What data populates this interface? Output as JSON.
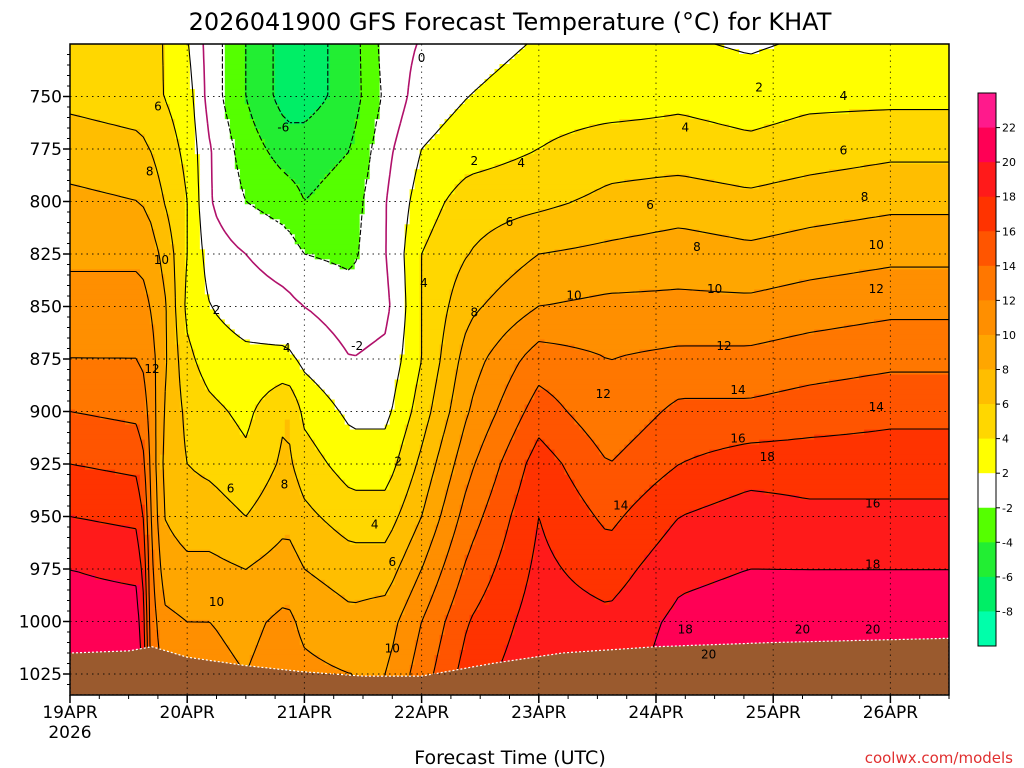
{
  "chart_data": {
    "type": "heatmap",
    "title": "2026041900 GFS Forecast Temperature (°C) for KHAT",
    "xlabel": "Forecast Time (UTC)",
    "ylabel": "",
    "x_ticks": [
      "19APR",
      "20APR",
      "21APR",
      "22APR",
      "23APR",
      "24APR",
      "25APR",
      "26APR"
    ],
    "x_year": "2026",
    "y_ticks": [
      750,
      775,
      800,
      825,
      850,
      875,
      900,
      925,
      950,
      975,
      1000,
      1025
    ],
    "y_range_hpa": [
      1035,
      725
    ],
    "x_range_days": [
      0,
      7.5
    ],
    "grid": true,
    "colorbar": {
      "labels": [
        22,
        20,
        18,
        16,
        14,
        12,
        10,
        8,
        6,
        4,
        2,
        -2,
        -4,
        -6,
        -8
      ],
      "colors": [
        "#ff1a8c",
        "#ff0055",
        "#ff1a1a",
        "#ff3300",
        "#ff5500",
        "#ff7700",
        "#ff8f00",
        "#ffa600",
        "#ffbe00",
        "#ffd700",
        "#ffff00",
        "#ffffff",
        "#55ff00",
        "#22ee33",
        "#00ee66",
        "#00ffaa"
      ]
    },
    "contour_labels": [
      {
        "v": "6",
        "d": 0.75,
        "p": 755
      },
      {
        "v": "8",
        "d": 0.68,
        "p": 786
      },
      {
        "v": "10",
        "d": 0.78,
        "p": 828
      },
      {
        "v": "12",
        "d": 0.7,
        "p": 880
      },
      {
        "v": "10",
        "d": 1.25,
        "p": 991
      },
      {
        "v": "6",
        "d": 1.37,
        "p": 937
      },
      {
        "v": "2",
        "d": 1.25,
        "p": 852
      },
      {
        "v": "4",
        "d": 1.85,
        "p": 870
      },
      {
        "v": "8",
        "d": 1.83,
        "p": 935
      },
      {
        "v": "-6",
        "d": 1.82,
        "p": 765
      },
      {
        "v": "0",
        "d": 3.0,
        "p": 732
      },
      {
        "v": "2",
        "d": 3.45,
        "p": 781
      },
      {
        "v": "4",
        "d": 3.02,
        "p": 839
      },
      {
        "v": "-2",
        "d": 2.45,
        "p": 869
      },
      {
        "v": "2",
        "d": 2.8,
        "p": 924
      },
      {
        "v": "4",
        "d": 2.6,
        "p": 954
      },
      {
        "v": "6",
        "d": 2.75,
        "p": 972
      },
      {
        "v": "10",
        "d": 2.75,
        "p": 1013
      },
      {
        "v": "4",
        "d": 3.85,
        "p": 782
      },
      {
        "v": "6",
        "d": 3.75,
        "p": 810
      },
      {
        "v": "8",
        "d": 3.45,
        "p": 853
      },
      {
        "v": "10",
        "d": 4.3,
        "p": 845
      },
      {
        "v": "12",
        "d": 4.55,
        "p": 892
      },
      {
        "v": "14",
        "d": 4.7,
        "p": 945
      },
      {
        "v": "4",
        "d": 5.25,
        "p": 765
      },
      {
        "v": "6",
        "d": 4.95,
        "p": 802
      },
      {
        "v": "8",
        "d": 5.35,
        "p": 822
      },
      {
        "v": "10",
        "d": 5.5,
        "p": 842
      },
      {
        "v": "12",
        "d": 5.58,
        "p": 869
      },
      {
        "v": "14",
        "d": 5.7,
        "p": 890
      },
      {
        "v": "16",
        "d": 5.7,
        "p": 913
      },
      {
        "v": "18",
        "d": 5.25,
        "p": 1004
      },
      {
        "v": "20",
        "d": 5.45,
        "p": 1016
      },
      {
        "v": "2",
        "d": 5.88,
        "p": 746
      },
      {
        "v": "4",
        "d": 6.6,
        "p": 750
      },
      {
        "v": "6",
        "d": 6.6,
        "p": 776
      },
      {
        "v": "8",
        "d": 6.78,
        "p": 798
      },
      {
        "v": "10",
        "d": 6.88,
        "p": 821
      },
      {
        "v": "12",
        "d": 6.88,
        "p": 842
      },
      {
        "v": "14",
        "d": 6.88,
        "p": 898
      },
      {
        "v": "18",
        "d": 5.95,
        "p": 922
      },
      {
        "v": "16",
        "d": 6.85,
        "p": 944
      },
      {
        "v": "18",
        "d": 6.85,
        "p": 973
      },
      {
        "v": "20",
        "d": 6.25,
        "p": 1004
      },
      {
        "v": "20",
        "d": 6.85,
        "p": 1004
      }
    ]
  },
  "credit": "coolwx.com/models"
}
